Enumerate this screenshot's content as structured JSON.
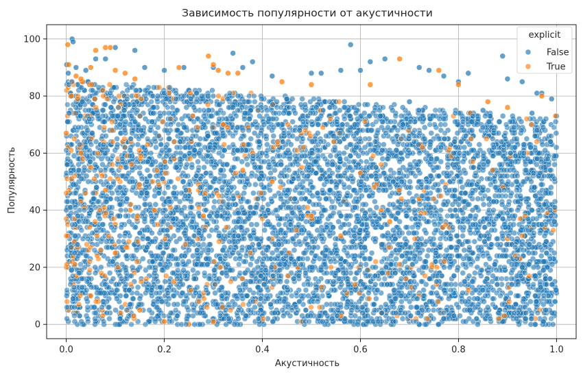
{
  "chart_data": {
    "type": "scatter",
    "title": "Зависимость популярности от акустичности",
    "xlabel": "Акустичность",
    "ylabel": "Популярность",
    "xlim": [
      -0.04,
      1.04
    ],
    "ylim": [
      -5,
      105
    ],
    "xticks": [
      0.0,
      0.2,
      0.4,
      0.6,
      0.8,
      1.0
    ],
    "xtick_labels": [
      "0.0",
      "0.2",
      "0.4",
      "0.6",
      "0.8",
      "1.0"
    ],
    "yticks": [
      0,
      20,
      40,
      60,
      80,
      100
    ],
    "ytick_labels": [
      "0",
      "20",
      "40",
      "60",
      "80",
      "100"
    ],
    "grid": true,
    "legend": {
      "title": "explicit",
      "placement": "top-right",
      "entries": [
        {
          "label": "False",
          "color": "#1f77b4"
        },
        {
          "label": "True",
          "color": "#ff7f0e"
        }
      ]
    },
    "series": [
      {
        "name": "False",
        "color": "#1f77b4",
        "density": "very dense cloud covering acousticness 0.0–1.0 and popularity 0–~85, upper envelope decreasing from ~88 at 0 to ~72 at 1.0",
        "points": [
          [
            0.012,
            100
          ],
          [
            0.014,
            99
          ],
          [
            0.001,
            91
          ],
          [
            0.004,
            88
          ],
          [
            0.02,
            90
          ],
          [
            0.04,
            89
          ],
          [
            0.06,
            93
          ],
          [
            0.08,
            93
          ],
          [
            0.1,
            97
          ],
          [
            0.14,
            96
          ],
          [
            0.16,
            90
          ],
          [
            0.2,
            89
          ],
          [
            0.24,
            90
          ],
          [
            0.3,
            90
          ],
          [
            0.34,
            95
          ],
          [
            0.36,
            90
          ],
          [
            0.38,
            92
          ],
          [
            0.42,
            87
          ],
          [
            0.5,
            88
          ],
          [
            0.52,
            88
          ],
          [
            0.56,
            89
          ],
          [
            0.58,
            98
          ],
          [
            0.6,
            89
          ],
          [
            0.62,
            92
          ],
          [
            0.65,
            93
          ],
          [
            0.72,
            90
          ],
          [
            0.74,
            89
          ],
          [
            0.77,
            87
          ],
          [
            0.8,
            85
          ],
          [
            0.82,
            88
          ],
          [
            0.89,
            94
          ],
          [
            0.9,
            86
          ],
          [
            0.93,
            85
          ],
          [
            0.96,
            81
          ],
          [
            0.97,
            81
          ],
          [
            0.99,
            79
          ],
          [
            0.15,
            82
          ],
          [
            0.25,
            80
          ],
          [
            0.45,
            79
          ],
          [
            0.55,
            78
          ],
          [
            0.7,
            78
          ],
          [
            0.85,
            75
          ],
          [
            0.95,
            74
          ],
          [
            1.0,
            73
          ]
        ]
      },
      {
        "name": "True",
        "color": "#ff7f0e",
        "density": "sparser, concentrated at low acousticness (0.0–0.35), thinning toward 1.0",
        "points": [
          [
            0.003,
            98
          ],
          [
            0.005,
            91
          ],
          [
            0.02,
            87
          ],
          [
            0.03,
            86
          ],
          [
            0.05,
            90
          ],
          [
            0.06,
            96
          ],
          [
            0.08,
            97
          ],
          [
            0.09,
            97
          ],
          [
            0.1,
            89
          ],
          [
            0.12,
            88
          ],
          [
            0.14,
            86
          ],
          [
            0.23,
            90
          ],
          [
            0.29,
            94
          ],
          [
            0.3,
            91
          ],
          [
            0.31,
            89
          ],
          [
            0.33,
            88
          ],
          [
            0.35,
            88
          ],
          [
            0.44,
            85
          ],
          [
            0.5,
            84
          ],
          [
            0.62,
            84
          ],
          [
            0.68,
            93
          ],
          [
            0.76,
            89
          ],
          [
            0.8,
            84
          ],
          [
            0.86,
            78
          ],
          [
            0.9,
            76
          ],
          [
            0.97,
            80
          ],
          [
            0.0,
            67
          ],
          [
            0.01,
            80
          ],
          [
            0.03,
            60
          ],
          [
            0.05,
            55
          ],
          [
            0.08,
            47
          ],
          [
            0.1,
            35
          ],
          [
            0.12,
            62
          ],
          [
            0.15,
            73
          ],
          [
            0.18,
            40
          ],
          [
            0.22,
            58
          ],
          [
            0.25,
            47
          ],
          [
            0.28,
            38
          ],
          [
            0.32,
            70
          ],
          [
            0.36,
            54
          ],
          [
            0.38,
            60
          ],
          [
            0.42,
            50
          ],
          [
            0.46,
            44
          ],
          [
            0.5,
            38
          ],
          [
            0.56,
            31
          ],
          [
            0.6,
            53
          ],
          [
            0.66,
            36
          ],
          [
            0.72,
            44
          ],
          [
            0.9,
            30
          ],
          [
            0.02,
            17
          ],
          [
            0.05,
            10
          ],
          [
            0.1,
            25
          ],
          [
            0.15,
            5
          ],
          [
            0.2,
            1
          ],
          [
            0.25,
            0
          ],
          [
            0.3,
            1
          ],
          [
            0.48,
            1
          ],
          [
            0.56,
            3
          ],
          [
            0.22,
            15
          ],
          [
            0.13,
            40
          ]
        ]
      }
    ]
  }
}
